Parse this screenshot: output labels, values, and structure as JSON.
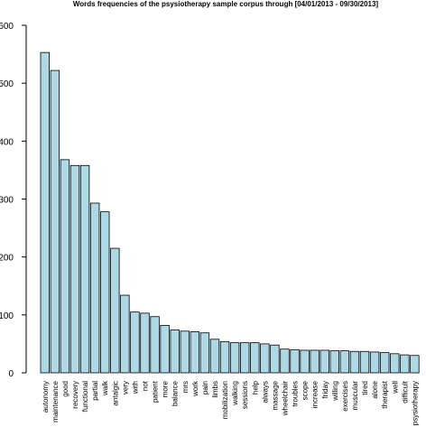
{
  "chart_data": {
    "type": "bar",
    "title": "Words frequencies of the psysiotherapy sample corpus through [04/01/2013 - 09/30/2013]",
    "xlabel": "",
    "ylabel": "",
    "ylim": [
      0,
      600
    ],
    "yticks": [
      0,
      100,
      200,
      300,
      400,
      500,
      600
    ],
    "categories": [
      "autonomy",
      "maintenance",
      "good",
      "recovery",
      "functional",
      "partial",
      "walk",
      "antalgic",
      "very",
      "with",
      "not",
      "patient",
      "more",
      "balance",
      "mrs",
      "work",
      "pain",
      "limbs",
      "mobilization",
      "walking",
      "sessions",
      "help",
      "always",
      "massage",
      "wheelchair",
      "troubles",
      "scope",
      "increase",
      "friday",
      "willing",
      "exercises",
      "muscular",
      "tired",
      "alone",
      "therapist",
      "well",
      "difficult",
      "psysiotherapy"
    ],
    "values": [
      553,
      522,
      368,
      358,
      358,
      293,
      278,
      215,
      134,
      105,
      103,
      97,
      82,
      74,
      72,
      71,
      69,
      58,
      54,
      52,
      52,
      52,
      50,
      48,
      41,
      40,
      39,
      39,
      39,
      38,
      38,
      37,
      37,
      36,
      35,
      33,
      31,
      30
    ],
    "bar_color": "#ADD8E6",
    "grid": false,
    "legend": "none"
  }
}
